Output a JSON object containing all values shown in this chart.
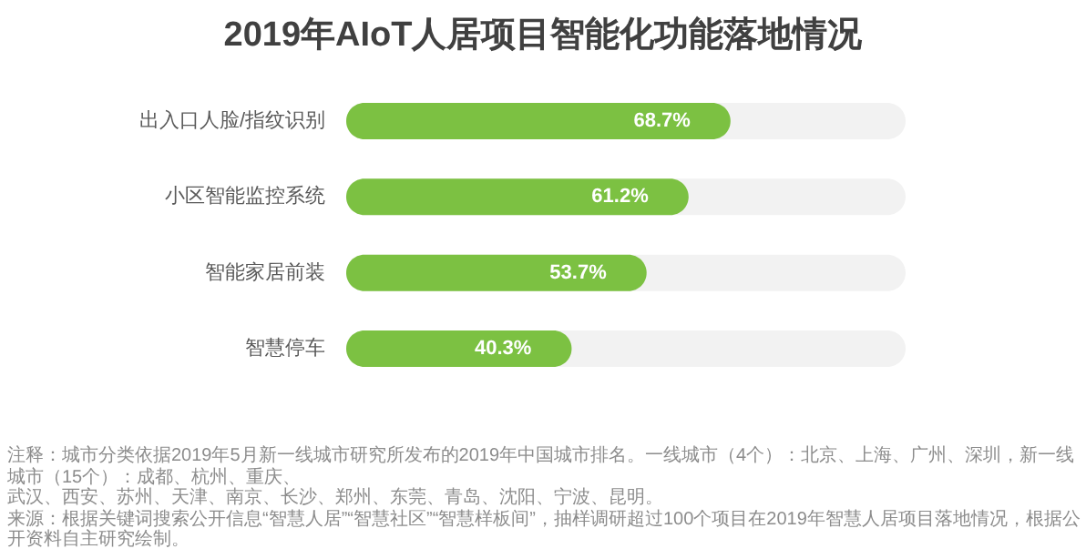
{
  "chart_data": {
    "type": "bar",
    "orientation": "horizontal",
    "title": "2019年AIoT人居项目智能化功能落地情况",
    "categories": [
      "出入口人脸/指纹识别",
      "小区智能监控系统",
      "智能家居前装",
      "智慧停车"
    ],
    "values": [
      68.7,
      61.2,
      53.7,
      40.3
    ],
    "value_labels": [
      "68.7%",
      "61.2%",
      "53.7%",
      "40.3%"
    ],
    "color": "#7cc142",
    "xlim": [
      0,
      100
    ],
    "tick_labels": "y",
    "grid": false,
    "annotations": [
      "注释：城市分类依据2019年5月新一线城市研究所发布的2019年中国城市排名。一线城市（4个）：北京、上海、广州、深圳，新一线城市（15个）：成都、杭州、重庆、",
      "武汉、西安、苏州、天津、南京、长沙、郑州、东莞、青岛、沈阳、宁波、昆明。",
      "来源：根据关键词搜索公开信息“智慧人居”“智慧社区”“智慧样板间”，抽样调研超过100个项目在2019年智慧人居项目落地情况，根据公开资料自主研究绘制。"
    ]
  }
}
